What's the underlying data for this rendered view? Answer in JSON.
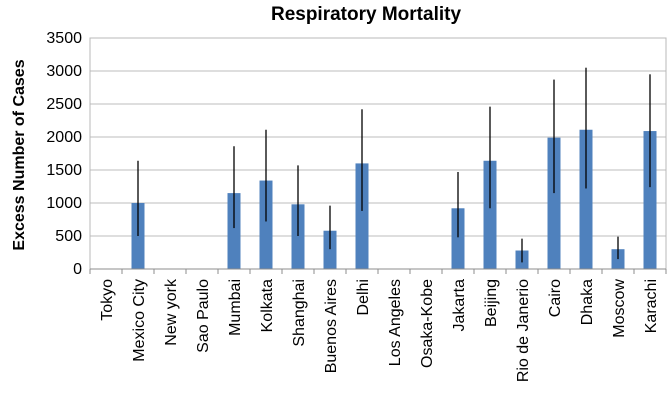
{
  "chart_data": {
    "type": "bar",
    "title": "Respiratory Mortality",
    "xlabel": "",
    "ylabel": "Excess Number of Cases",
    "ylim": [
      0,
      3500
    ],
    "yticks": [
      0,
      500,
      1000,
      1500,
      2000,
      2500,
      3000,
      3500
    ],
    "grid": true,
    "bar_color": "#4f81bd",
    "error_color": "#000000",
    "categories": [
      "Tokyo",
      "Mexico City",
      "New york",
      "Sao Paulo",
      "Mumbai",
      "Kolkata",
      "Shanghai",
      "Buenos Aires",
      "Delhi",
      "Los Angeles",
      "Osaka-Kobe",
      "Jakarta",
      "Beijing",
      "Rio de Janerio",
      "Cairo",
      "Dhaka",
      "Moscow",
      "Karachi"
    ],
    "values": [
      0,
      1000,
      0,
      0,
      1150,
      1340,
      980,
      580,
      1600,
      0,
      0,
      920,
      1640,
      280,
      1990,
      2110,
      300,
      2090
    ],
    "error_low": [
      0,
      500,
      0,
      0,
      620,
      720,
      500,
      300,
      880,
      0,
      0,
      480,
      920,
      100,
      1150,
      1220,
      150,
      1240
    ],
    "error_high": [
      0,
      1640,
      0,
      0,
      1860,
      2110,
      1570,
      960,
      2420,
      0,
      0,
      1470,
      2460,
      460,
      2870,
      3050,
      490,
      2950
    ]
  }
}
